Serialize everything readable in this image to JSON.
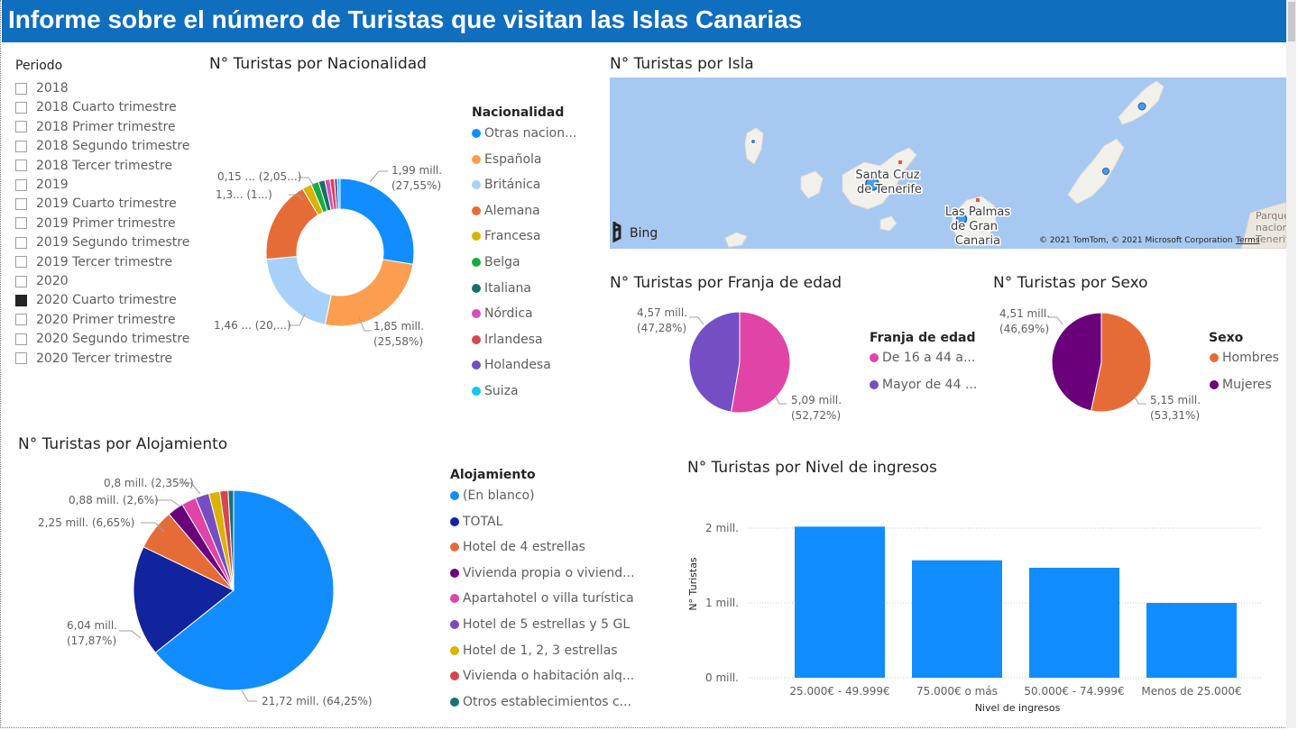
{
  "title": "Informe sobre el número de Turistas que visitan las Islas Canarias",
  "slicer": {
    "title": "Periodo",
    "items": [
      {
        "label": "2018",
        "checked": false
      },
      {
        "label": "2018 Cuarto trimestre",
        "checked": false
      },
      {
        "label": "2018 Primer trimestre",
        "checked": false
      },
      {
        "label": "2018 Segundo trimestre",
        "checked": false
      },
      {
        "label": "2018 Tercer trimestre",
        "checked": false
      },
      {
        "label": "2019",
        "checked": false
      },
      {
        "label": "2019 Cuarto trimestre",
        "checked": false
      },
      {
        "label": "2019 Primer trimestre",
        "checked": false
      },
      {
        "label": "2019 Segundo trimestre",
        "checked": false
      },
      {
        "label": "2019 Tercer trimestre",
        "checked": false
      },
      {
        "label": "2020",
        "checked": false
      },
      {
        "label": "2020 Cuarto trimestre",
        "checked": true
      },
      {
        "label": "2020 Primer trimestre",
        "checked": false
      },
      {
        "label": "2020 Segundo trimestre",
        "checked": false
      },
      {
        "label": "2020 Tercer trimestre",
        "checked": false
      }
    ]
  },
  "nacionalidad": {
    "title": "N° Turistas por Nacionalidad",
    "legend_title": "Nacionalidad",
    "legend": [
      {
        "label": "Otras nacion...",
        "color": "#118dff"
      },
      {
        "label": "Española",
        "color": "#fc9e50"
      },
      {
        "label": "Británica",
        "color": "#a8d1f9"
      },
      {
        "label": "Alemana",
        "color": "#e66c37"
      },
      {
        "label": "Francesa",
        "color": "#d9b300"
      },
      {
        "label": "Belga",
        "color": "#1aab40"
      },
      {
        "label": "Italiana",
        "color": "#15706a"
      },
      {
        "label": "Nórdica",
        "color": "#d64dbc"
      },
      {
        "label": "Irlandesa",
        "color": "#d64550"
      },
      {
        "label": "Holandesa",
        "color": "#744ec2"
      },
      {
        "label": "Suiza",
        "color": "#15c6f4"
      }
    ],
    "labels": {
      "otras": [
        "1,99 mill.",
        "(27,55%)"
      ],
      "espanola": [
        "1,85 mill.",
        "(25,58%)"
      ],
      "britanica": "1,46 ... (20,...)",
      "alemana": "1,3... (1...)",
      "small": "0,15 ... (2,05...)"
    }
  },
  "isla": {
    "title": "N° Turistas por Isla",
    "bing": "Bing",
    "copyright": "© 2021 TomTom, © 2021 Microsoft Corporation",
    "terms": "Terms",
    "place1": [
      "Santa Cruz",
      "de Tenerife"
    ],
    "place2": [
      "Las Palmas",
      "de Gran",
      "Canaria"
    ],
    "place3": [
      "Parque",
      "nacional",
      "Tenerife"
    ]
  },
  "edad": {
    "title": "N° Turistas por Franja de edad",
    "legend_title": "Franja de edad",
    "legend": [
      {
        "label": "De 16 a 44 a...",
        "color": "#e044a7"
      },
      {
        "label": "Mayor de 44 ...",
        "color": "#744ec2"
      }
    ],
    "label_a": [
      "4,57 mill.",
      "(47,28%)"
    ],
    "label_b": [
      "5,09 mill.",
      "(52,72%)"
    ]
  },
  "sexo": {
    "title": "N° Turistas por Sexo",
    "legend_title": "Sexo",
    "legend": [
      {
        "label": "Hombres",
        "color": "#e66c37"
      },
      {
        "label": "Mujeres",
        "color": "#6b007b"
      }
    ],
    "label_a": [
      "4,51 mill.",
      "(46,69%)"
    ],
    "label_b": [
      "5,15 mill.",
      "(53,31%)"
    ]
  },
  "alojamiento": {
    "title": "N° Turistas por Alojamiento",
    "legend_title": "Alojamiento",
    "legend": [
      {
        "label": "(En blanco)",
        "color": "#118dff"
      },
      {
        "label": "TOTAL",
        "color": "#12239e"
      },
      {
        "label": "Hotel de 4 estrellas",
        "color": "#e66c37"
      },
      {
        "label": "Vivienda propia o viviend...",
        "color": "#6b007b"
      },
      {
        "label": "Apartahotel o villa turística",
        "color": "#e044a7"
      },
      {
        "label": "Hotel de 5 estrellas y 5 GL",
        "color": "#744ec2"
      },
      {
        "label": "Hotel de 1, 2, 3 estrellas",
        "color": "#d9b300"
      },
      {
        "label": "Vivienda o habitación alq...",
        "color": "#d64550"
      },
      {
        "label": "Otros establecimientos c...",
        "color": "#197278"
      }
    ],
    "labels": {
      "a": "0,8 mill. (2,35%)",
      "b": "0,88 mill. (2,6%)",
      "c": "2,25 mill. (6,65%)",
      "d": [
        "6,04 mill.",
        "(17,87%)"
      ],
      "e": "21,72 mill. (64,25%)"
    }
  },
  "ingresos": {
    "title": "N° Turistas por Nivel de ingresos",
    "xlabel": "Nivel de ingresos",
    "ylabel": "N° Turistas",
    "yticks": [
      "2 mill.",
      "1 mill.",
      "0 mill."
    ]
  },
  "chart_data": [
    {
      "type": "pie",
      "title": "N° Turistas por Nacionalidad",
      "categories": [
        "Otras nacion...",
        "Española",
        "Británica",
        "Alemana",
        "Francesa",
        "Belga",
        "Italiana",
        "Nórdica",
        "Irlandesa",
        "Holandesa",
        "Suiza"
      ],
      "values": [
        1.99,
        1.85,
        1.46,
        1.3,
        0.15,
        0.12,
        0.1,
        0.08,
        0.07,
        0.05,
        0.04
      ],
      "percent": [
        27.55,
        25.58,
        20.2,
        18.0,
        2.05,
        1.66,
        1.38,
        1.11,
        0.97,
        0.69,
        0.55
      ],
      "donut": true
    },
    {
      "type": "pie",
      "title": "N° Turistas por Franja de edad",
      "categories": [
        "De 16 a 44 a...",
        "Mayor de 44 ..."
      ],
      "values": [
        5.09,
        4.57
      ],
      "percent": [
        52.72,
        47.28
      ]
    },
    {
      "type": "pie",
      "title": "N° Turistas por Sexo",
      "categories": [
        "Hombres",
        "Mujeres"
      ],
      "values": [
        5.15,
        4.51
      ],
      "percent": [
        53.31,
        46.69
      ]
    },
    {
      "type": "pie",
      "title": "N° Turistas por Alojamiento",
      "categories": [
        "(En blanco)",
        "TOTAL",
        "Hotel de 4 estrellas",
        "Vivienda propia o viviend...",
        "Apartahotel o villa turística",
        "Hotel de 5 estrellas y 5 GL",
        "Hotel de 1, 2, 3 estrellas",
        "Vivienda o habitación alq...",
        "Otros establecimientos c..."
      ],
      "values": [
        21.72,
        6.04,
        2.25,
        0.88,
        0.8,
        0.75,
        0.6,
        0.45,
        0.3
      ],
      "percent": [
        64.25,
        17.87,
        6.65,
        2.6,
        2.35,
        2.2,
        1.8,
        1.3,
        0.9
      ]
    },
    {
      "type": "bar",
      "title": "N° Turistas por Nivel de ingresos",
      "categories": [
        "25.000€ - 49.999€",
        "75.000€ o más",
        "50.000€ - 74.999€",
        "Menos de 25.000€"
      ],
      "values": [
        2.02,
        1.57,
        1.47,
        1.0
      ],
      "xlabel": "Nivel de ingresos",
      "ylabel": "N° Turistas",
      "ylim": [
        0,
        2.2
      ],
      "color": "#118dff"
    }
  ]
}
